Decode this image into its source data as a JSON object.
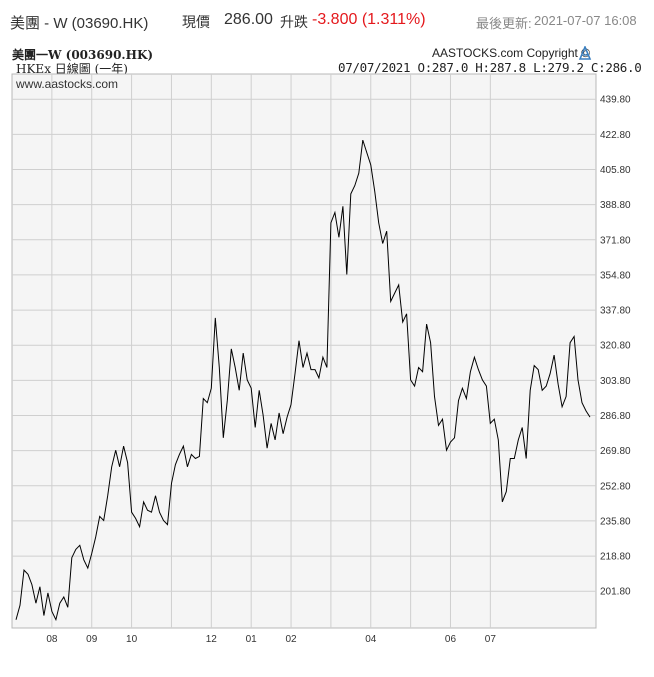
{
  "header": {
    "stock_name": "美團 - W (03690.HK)",
    "price_label": "現價",
    "price": "286.00",
    "change_label": "升跌",
    "change": "-3.800 (1.311%)",
    "change_color": "#e4181c",
    "updated_label": "最後更新:",
    "updated_time": "2021-07-07 16:08"
  },
  "chart_header": {
    "title": "美團一W (003690.HK)",
    "subtitle": "HKEx 日線圖 (一年)",
    "copyright": "AASTOCKS.com Copyright ©",
    "logo_icon": "aastocks-logo-icon",
    "readout": "07/07/2021  O:287.0  H:287.8  L:279.2  C:286.0"
  },
  "chart_data": {
    "type": "line",
    "title": "",
    "watermark": "www.aastocks.com",
    "xlabel": "",
    "ylabel": "",
    "grid": true,
    "ylim": [
      184,
      452
    ],
    "y_ticks": [
      "201.80",
      "218.80",
      "235.80",
      "252.80",
      "269.80",
      "286.80",
      "303.80",
      "320.80",
      "337.80",
      "354.80",
      "371.80",
      "388.80",
      "405.80",
      "422.80",
      "439.80"
    ],
    "x_ticks": [
      {
        "label": "08",
        "index": 9
      },
      {
        "label": "09",
        "index": 19
      },
      {
        "label": "10",
        "index": 29
      },
      {
        "label": "",
        "index": 39
      },
      {
        "label": "12",
        "index": 49
      },
      {
        "label": "01",
        "index": 59
      },
      {
        "label": "02",
        "index": 69
      },
      {
        "label": "",
        "index": 79
      },
      {
        "label": "04",
        "index": 89
      },
      {
        "label": "",
        "index": 99
      },
      {
        "label": "06",
        "index": 109
      },
      {
        "label": "07",
        "index": 119
      }
    ],
    "series": [
      {
        "values": [
          188,
          195,
          212,
          210,
          205,
          196,
          204,
          190,
          201,
          192,
          188,
          196,
          199,
          194,
          218,
          222,
          224,
          217,
          213,
          220,
          228,
          238,
          236,
          248,
          262,
          270,
          262,
          272,
          264,
          240,
          237,
          233,
          245,
          241,
          240,
          248,
          240,
          236,
          234,
          254,
          263,
          268,
          272,
          262,
          268,
          266,
          267,
          295,
          293,
          300,
          334,
          310,
          276,
          294,
          319,
          310,
          299,
          317,
          304,
          300,
          281,
          299,
          287,
          271,
          283,
          275,
          288,
          278,
          286,
          292,
          307,
          323,
          310,
          317,
          309,
          309,
          305,
          315,
          310,
          380,
          385,
          373,
          388,
          355,
          394,
          398,
          404,
          420,
          414,
          408,
          395,
          380,
          370,
          376,
          342,
          346,
          350,
          332,
          336,
          304,
          301,
          310,
          308,
          331,
          322,
          296,
          282,
          285,
          270,
          274,
          276,
          294,
          300,
          295,
          308,
          315,
          309,
          304,
          301,
          283,
          285,
          275,
          245,
          250,
          266,
          266,
          275,
          281,
          266,
          299,
          311,
          309,
          299,
          301,
          307,
          316,
          302,
          291,
          296,
          322,
          325,
          304,
          293,
          289,
          286
        ]
      }
    ]
  }
}
